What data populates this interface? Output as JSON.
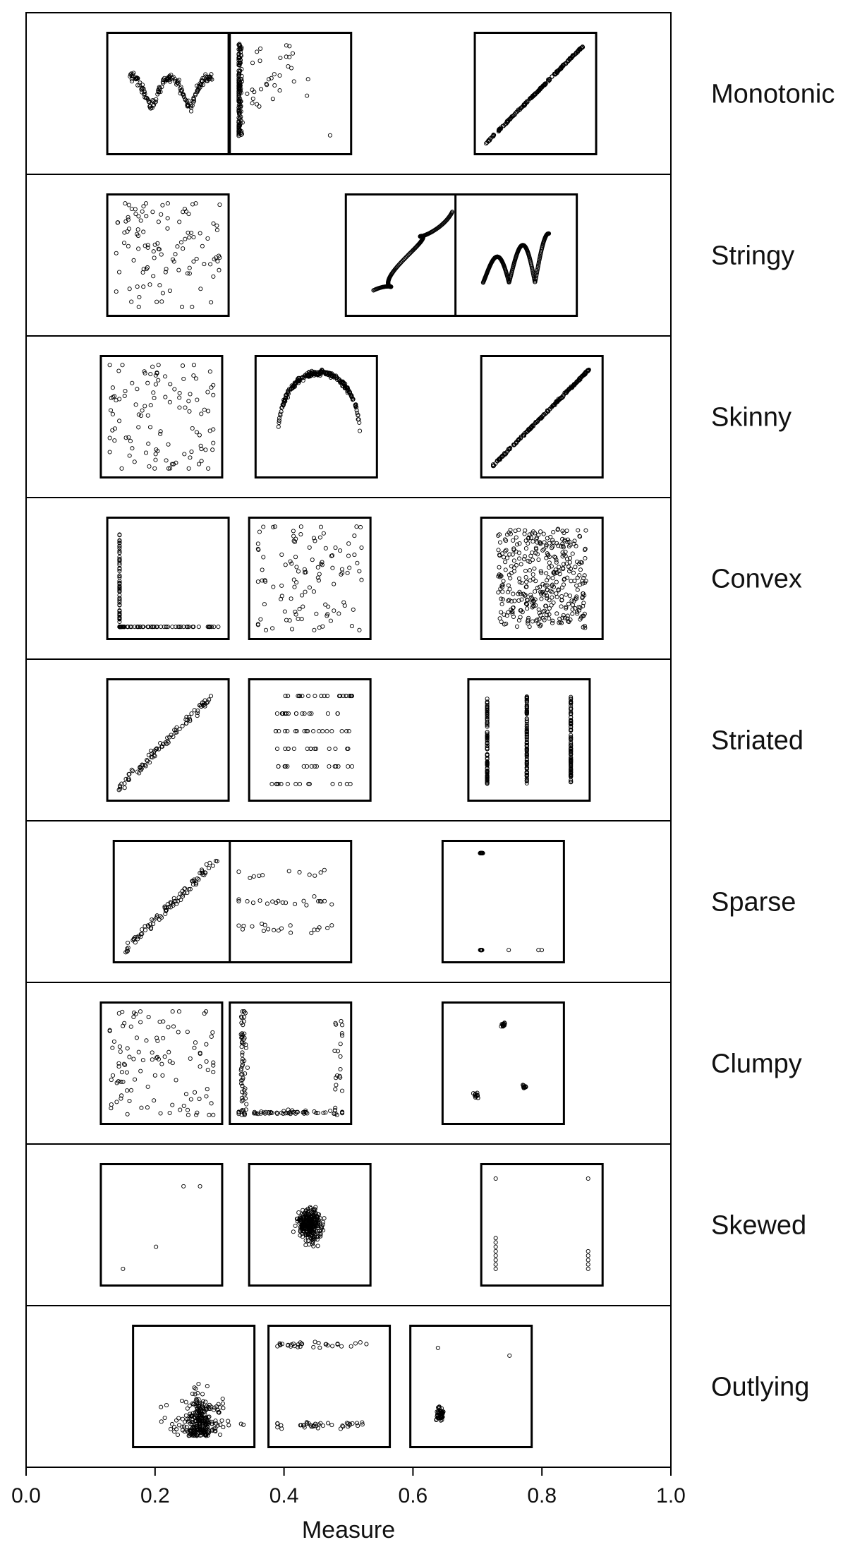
{
  "chart_data": {
    "type": "scatter",
    "title": "",
    "xlabel": "Measure",
    "ylabel": "",
    "xlim": [
      0.0,
      1.0
    ],
    "xticks": [
      "0.0",
      "0.2",
      "0.4",
      "0.6",
      "0.8",
      "1.0"
    ],
    "grid": false,
    "rows": [
      {
        "label": "Monotonic",
        "points": [
          0.22,
          0.41,
          0.79
        ]
      },
      {
        "label": "Stringy",
        "points": [
          0.22,
          0.59,
          0.76
        ]
      },
      {
        "label": "Skinny",
        "points": [
          0.21,
          0.45,
          0.8
        ]
      },
      {
        "label": "Convex",
        "points": [
          0.22,
          0.44,
          0.8
        ]
      },
      {
        "label": "Striated",
        "points": [
          0.22,
          0.44,
          0.78
        ]
      },
      {
        "label": "Sparse",
        "points": [
          0.23,
          0.41,
          0.74
        ]
      },
      {
        "label": "Clumpy",
        "points": [
          0.21,
          0.41,
          0.74
        ]
      },
      {
        "label": "Skewed",
        "points": [
          0.21,
          0.44,
          0.8
        ]
      },
      {
        "label": "Outlying",
        "points": [
          0.26,
          0.47,
          0.69
        ]
      }
    ]
  }
}
